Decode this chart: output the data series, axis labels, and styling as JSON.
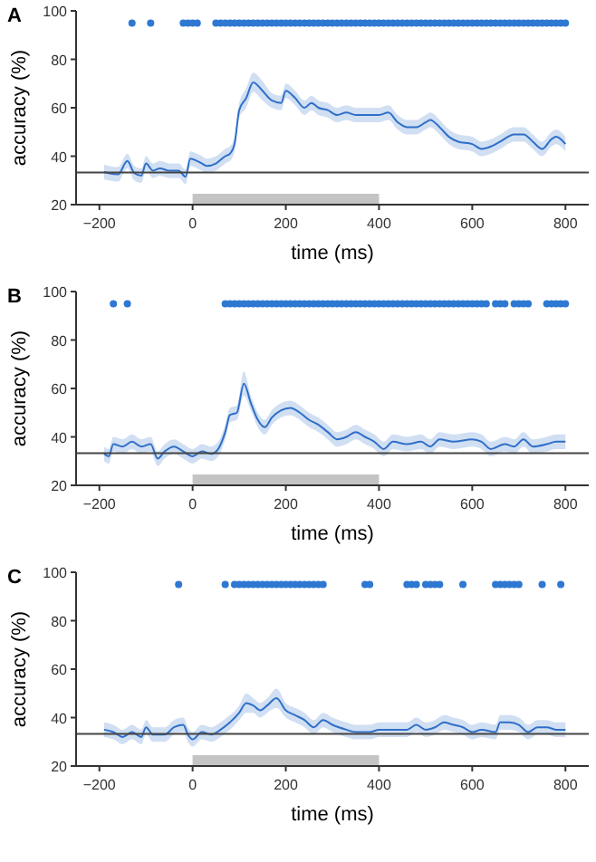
{
  "chart_data": [
    {
      "type": "line",
      "title": "A",
      "xlabel": "time (ms)",
      "ylabel": "accuracy (%)",
      "xlim": [
        -250,
        850
      ],
      "ylim": [
        20,
        100
      ],
      "xticks": [
        -200,
        0,
        200,
        400,
        600,
        800
      ],
      "yticks": [
        20,
        40,
        60,
        80,
        100
      ],
      "grid": false,
      "ref_lines": [
        {
          "axis": "y",
          "value": 33.3,
          "color": "#444444"
        }
      ],
      "bands": [
        {
          "axis": "x",
          "from": 0,
          "to": 400,
          "color": "#c4c4c4"
        }
      ],
      "series": [
        {
          "color": "#2f6fc8",
          "x": [
            -190,
            -180,
            -160,
            -140,
            -125,
            -110,
            -100,
            -85,
            -70,
            -50,
            -30,
            -15,
            -5,
            10,
            20,
            30,
            50,
            70,
            80,
            90,
            100,
            115,
            130,
            150,
            170,
            190,
            200,
            220,
            240,
            255,
            270,
            290,
            310,
            330,
            350,
            380,
            400,
            420,
            440,
            460,
            480,
            500,
            510,
            530,
            550,
            570,
            600,
            620,
            640,
            660,
            690,
            710,
            730,
            750,
            770,
            780,
            800
          ],
          "values": [
            33.5,
            33,
            32.5,
            38,
            33,
            32,
            37,
            34,
            35,
            34,
            34,
            31.5,
            39,
            38,
            37,
            36,
            37,
            40,
            41,
            45,
            59,
            64,
            70.5,
            67,
            63,
            62,
            67,
            64,
            60,
            62,
            60,
            59,
            57,
            58,
            57,
            57,
            57,
            58,
            54,
            52,
            52,
            54,
            55,
            52,
            48,
            46,
            45,
            43,
            44,
            46,
            49,
            49,
            46,
            43,
            47,
            48,
            45
          ],
          "lower": [
            30.5,
            30,
            29.5,
            35,
            30,
            29,
            34,
            31,
            32,
            31,
            31,
            28.5,
            36,
            35,
            34,
            33,
            34,
            37,
            38,
            42,
            56,
            60,
            66.5,
            63,
            60,
            59,
            64,
            61,
            57,
            59,
            57,
            56,
            54,
            55,
            54,
            54,
            54,
            55,
            51,
            49,
            49,
            51,
            52,
            49,
            45,
            43,
            42,
            40,
            41,
            43,
            46,
            46,
            43,
            40,
            44,
            45,
            42
          ],
          "upper": [
            36.5,
            36,
            35.5,
            41,
            36,
            35,
            40,
            37,
            38,
            37,
            37,
            34.5,
            42,
            41,
            40,
            39,
            40,
            43,
            44,
            48,
            62,
            68,
            74.5,
            71,
            66,
            65,
            70,
            67,
            63,
            65,
            63,
            62,
            60,
            61,
            60,
            60,
            60,
            61,
            57,
            55,
            55,
            57,
            58,
            55,
            51,
            49,
            48,
            46,
            47,
            49,
            52,
            52,
            49,
            46,
            50,
            51,
            48
          ]
        },
        {
          "type": "scatter",
          "color": "#2e78d2",
          "marker": "circle",
          "x": [
            -130,
            -90,
            -20,
            -10,
            0,
            10,
            50,
            60,
            70,
            80,
            90,
            100,
            110,
            120,
            130,
            140,
            150,
            160,
            170,
            180,
            190,
            200,
            210,
            220,
            230,
            240,
            250,
            260,
            270,
            280,
            290,
            300,
            310,
            320,
            330,
            340,
            350,
            360,
            370,
            380,
            390,
            400,
            410,
            420,
            430,
            440,
            450,
            460,
            470,
            480,
            490,
            500,
            510,
            520,
            530,
            540,
            550,
            560,
            570,
            580,
            590,
            600,
            610,
            620,
            630,
            640,
            650,
            660,
            670,
            680,
            690,
            700,
            710,
            720,
            730,
            740,
            750,
            760,
            770,
            780,
            790,
            800
          ],
          "values": [
            95,
            95,
            95,
            95,
            95,
            95,
            95,
            95,
            95,
            95,
            95,
            95,
            95,
            95,
            95,
            95,
            95,
            95,
            95,
            95,
            95,
            95,
            95,
            95,
            95,
            95,
            95,
            95,
            95,
            95,
            95,
            95,
            95,
            95,
            95,
            95,
            95,
            95,
            95,
            95,
            95,
            95,
            95,
            95,
            95,
            95,
            95,
            95,
            95,
            95,
            95,
            95,
            95,
            95,
            95,
            95,
            95,
            95,
            95,
            95,
            95,
            95,
            95,
            95,
            95,
            95,
            95,
            95,
            95,
            95,
            95,
            95,
            95,
            95,
            95,
            95,
            95,
            95,
            95,
            95,
            95,
            95
          ]
        }
      ]
    },
    {
      "type": "line",
      "title": "B",
      "xlabel": "time (ms)",
      "ylabel": "accuracy (%)",
      "xlim": [
        -250,
        850
      ],
      "ylim": [
        20,
        100
      ],
      "xticks": [
        -200,
        0,
        200,
        400,
        600,
        800
      ],
      "yticks": [
        20,
        40,
        60,
        80,
        100
      ],
      "grid": false,
      "ref_lines": [
        {
          "axis": "y",
          "value": 33.3,
          "color": "#444444"
        }
      ],
      "bands": [
        {
          "axis": "x",
          "from": 0,
          "to": 400,
          "color": "#c4c4c4"
        }
      ],
      "series": [
        {
          "color": "#2f6fc8",
          "x": [
            -190,
            -180,
            -170,
            -150,
            -130,
            -110,
            -90,
            -75,
            -60,
            -40,
            -20,
            0,
            20,
            40,
            55,
            70,
            80,
            95,
            110,
            125,
            140,
            155,
            170,
            190,
            210,
            230,
            250,
            270,
            290,
            310,
            330,
            350,
            370,
            390,
            410,
            430,
            460,
            490,
            510,
            530,
            560,
            600,
            620,
            640,
            670,
            690,
            710,
            730,
            760,
            780,
            800
          ],
          "values": [
            33,
            32,
            37,
            36,
            38,
            36,
            37,
            31,
            34,
            36,
            34,
            32,
            34,
            33,
            35,
            42,
            49,
            50,
            62,
            54,
            47,
            44,
            48,
            51,
            52,
            50,
            47,
            45,
            42,
            39,
            40,
            42,
            40,
            38,
            35,
            38,
            37,
            38,
            36,
            39,
            38,
            39,
            38,
            35,
            37,
            36,
            39,
            36,
            37,
            38,
            38
          ],
          "lower": [
            30,
            29,
            34,
            33,
            35,
            33,
            34,
            28,
            31,
            33,
            31,
            29,
            31,
            30,
            32,
            39,
            46,
            47,
            57,
            51,
            44,
            41,
            45,
            48,
            49,
            47,
            44,
            42,
            39,
            36,
            37,
            39,
            37,
            35,
            32,
            35,
            34,
            35,
            33,
            36,
            35,
            36,
            35,
            32,
            34,
            33,
            36,
            33,
            34,
            35,
            35
          ],
          "upper": [
            36,
            35,
            40,
            39,
            41,
            39,
            40,
            34,
            37,
            39,
            37,
            35,
            37,
            36,
            38,
            45,
            52,
            53,
            67,
            57,
            50,
            47,
            51,
            54,
            55,
            53,
            50,
            48,
            45,
            42,
            43,
            45,
            43,
            41,
            38,
            41,
            40,
            41,
            39,
            42,
            41,
            42,
            41,
            38,
            40,
            39,
            42,
            39,
            40,
            41,
            41
          ]
        },
        {
          "type": "scatter",
          "color": "#2e78d2",
          "marker": "circle",
          "x": [
            -170,
            -140,
            70,
            80,
            90,
            100,
            110,
            120,
            130,
            140,
            150,
            160,
            170,
            180,
            190,
            200,
            210,
            220,
            230,
            240,
            250,
            260,
            270,
            280,
            290,
            300,
            310,
            320,
            330,
            340,
            350,
            360,
            370,
            380,
            390,
            400,
            410,
            420,
            430,
            440,
            450,
            460,
            470,
            480,
            490,
            500,
            510,
            520,
            530,
            540,
            550,
            560,
            570,
            580,
            590,
            600,
            610,
            620,
            630,
            650,
            660,
            670,
            690,
            700,
            710,
            720,
            760,
            770,
            780,
            790,
            800
          ],
          "values": [
            95,
            95,
            95,
            95,
            95,
            95,
            95,
            95,
            95,
            95,
            95,
            95,
            95,
            95,
            95,
            95,
            95,
            95,
            95,
            95,
            95,
            95,
            95,
            95,
            95,
            95,
            95,
            95,
            95,
            95,
            95,
            95,
            95,
            95,
            95,
            95,
            95,
            95,
            95,
            95,
            95,
            95,
            95,
            95,
            95,
            95,
            95,
            95,
            95,
            95,
            95,
            95,
            95,
            95,
            95,
            95,
            95,
            95,
            95,
            95,
            95,
            95,
            95,
            95,
            95,
            95,
            95,
            95,
            95,
            95,
            95
          ]
        }
      ]
    },
    {
      "type": "line",
      "title": "C",
      "xlabel": "time (ms)",
      "ylabel": "accuracy (%)",
      "xlim": [
        -250,
        850
      ],
      "ylim": [
        20,
        100
      ],
      "xticks": [
        -200,
        0,
        200,
        400,
        600,
        800
      ],
      "yticks": [
        20,
        40,
        60,
        80,
        100
      ],
      "grid": false,
      "ref_lines": [
        {
          "axis": "y",
          "value": 33.3,
          "color": "#444444"
        }
      ],
      "bands": [
        {
          "axis": "x",
          "from": 0,
          "to": 400,
          "color": "#c4c4c4"
        }
      ],
      "series": [
        {
          "color": "#2f6fc8",
          "x": [
            -190,
            -170,
            -150,
            -130,
            -110,
            -100,
            -85,
            -60,
            -40,
            -20,
            -10,
            0,
            20,
            40,
            60,
            80,
            100,
            115,
            130,
            145,
            160,
            180,
            200,
            220,
            240,
            260,
            280,
            300,
            330,
            350,
            380,
            400,
            430,
            460,
            480,
            500,
            520,
            540,
            560,
            580,
            600,
            620,
            650,
            660,
            680,
            700,
            720,
            740,
            760,
            780,
            800
          ],
          "values": [
            35,
            34,
            32,
            34,
            32,
            36,
            33,
            33,
            36,
            37,
            33,
            31,
            34,
            33,
            35,
            38,
            42,
            46,
            45,
            43,
            45,
            48,
            43,
            41,
            39,
            36,
            39,
            37,
            35,
            34,
            34,
            35,
            35,
            35,
            37,
            35,
            36,
            38,
            37,
            36,
            34,
            35,
            34,
            38,
            38,
            37,
            34,
            36,
            36,
            35,
            35
          ],
          "lower": [
            32,
            31,
            29,
            31,
            29,
            33,
            30,
            30,
            33,
            34,
            30,
            28,
            31,
            30,
            32,
            35,
            39,
            42,
            42,
            40,
            42,
            44,
            40,
            38,
            36,
            33,
            36,
            34,
            32,
            31,
            31,
            32,
            32,
            32,
            34,
            32,
            33,
            35,
            34,
            33,
            31,
            32,
            31,
            35,
            35,
            34,
            31,
            33,
            33,
            32,
            32
          ],
          "upper": [
            38,
            37,
            35,
            37,
            35,
            39,
            36,
            36,
            39,
            40,
            36,
            34,
            37,
            36,
            38,
            41,
            45,
            50,
            48,
            46,
            48,
            52,
            46,
            44,
            42,
            39,
            42,
            40,
            38,
            37,
            37,
            38,
            38,
            38,
            40,
            38,
            39,
            41,
            40,
            39,
            37,
            38,
            37,
            41,
            41,
            40,
            37,
            39,
            39,
            38,
            38
          ]
        },
        {
          "type": "scatter",
          "color": "#2e78d2",
          "marker": "circle",
          "x": [
            -30,
            70,
            90,
            100,
            110,
            120,
            130,
            140,
            150,
            160,
            170,
            180,
            190,
            200,
            210,
            220,
            230,
            240,
            250,
            260,
            270,
            280,
            370,
            380,
            460,
            470,
            480,
            500,
            510,
            520,
            530,
            580,
            650,
            660,
            670,
            680,
            690,
            700,
            750,
            790
          ],
          "values": [
            95,
            95,
            95,
            95,
            95,
            95,
            95,
            95,
            95,
            95,
            95,
            95,
            95,
            95,
            95,
            95,
            95,
            95,
            95,
            95,
            95,
            95,
            95,
            95,
            95,
            95,
            95,
            95,
            95,
            95,
            95,
            95,
            95,
            95,
            95,
            95,
            95,
            95,
            95,
            95
          ]
        }
      ]
    }
  ]
}
